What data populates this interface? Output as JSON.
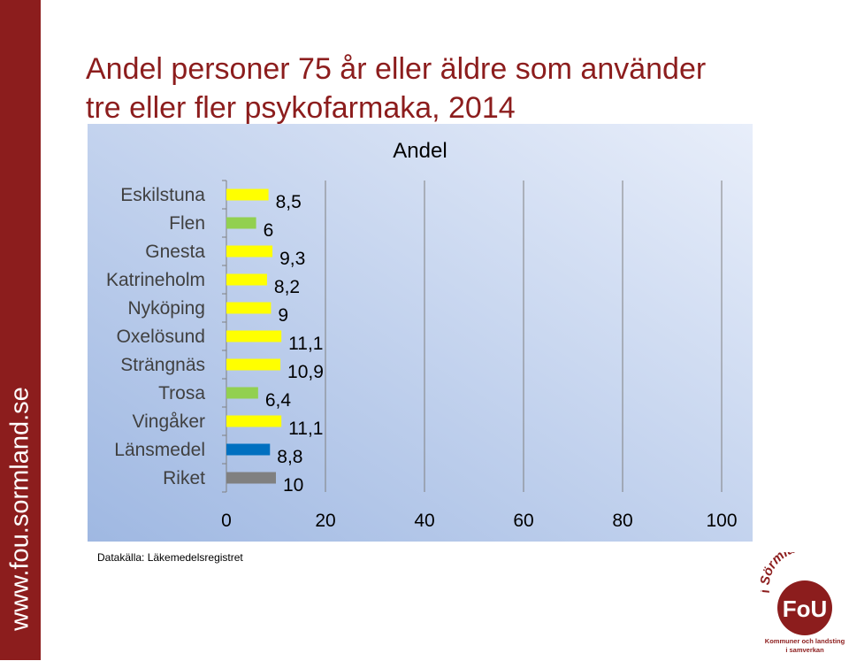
{
  "side_text": "www.fou.sormland.se",
  "title": {
    "line1": "Andel personer 75 år eller äldre som använder",
    "line2": "tre eller fler psykofarmaka, 2014"
  },
  "source": "Datakälla: Läkemedelsregistret",
  "logo": {
    "arc_text": "i Sörmland",
    "mark": "FoU",
    "line1": "Kommuner och landsting",
    "line2": "i samverkan"
  },
  "colors": {
    "brand": "#8c1d1d",
    "plot_bg_start": "#e8eefa",
    "plot_bg_end": "#9fb8e2"
  },
  "chart_data": {
    "type": "bar",
    "orientation": "horizontal",
    "title": "Andel",
    "categories": [
      "Eskilstuna",
      "Flen",
      "Gnesta",
      "Katrineholm",
      "Nyköping",
      "Oxelösund",
      "Strängnäs",
      "Trosa",
      "Vingåker",
      "Länsmedel",
      "Riket"
    ],
    "values": [
      8.5,
      6,
      9.3,
      8.2,
      9,
      11.1,
      10.9,
      6.4,
      11.1,
      8.8,
      10
    ],
    "value_labels": [
      "8,5",
      "6",
      "9,3",
      "8,2",
      "9",
      "11,1",
      "10,9",
      "6,4",
      "11,1",
      "8,8",
      "10"
    ],
    "bar_colors": [
      "#ffff00",
      "#92d050",
      "#ffff00",
      "#ffff00",
      "#ffff00",
      "#ffff00",
      "#ffff00",
      "#92d050",
      "#ffff00",
      "#0070c0",
      "#808080"
    ],
    "xlim": [
      0,
      100
    ],
    "x_ticks": [
      0,
      20,
      40,
      60,
      80,
      100
    ],
    "grid": true,
    "xlabel": "",
    "ylabel": ""
  }
}
